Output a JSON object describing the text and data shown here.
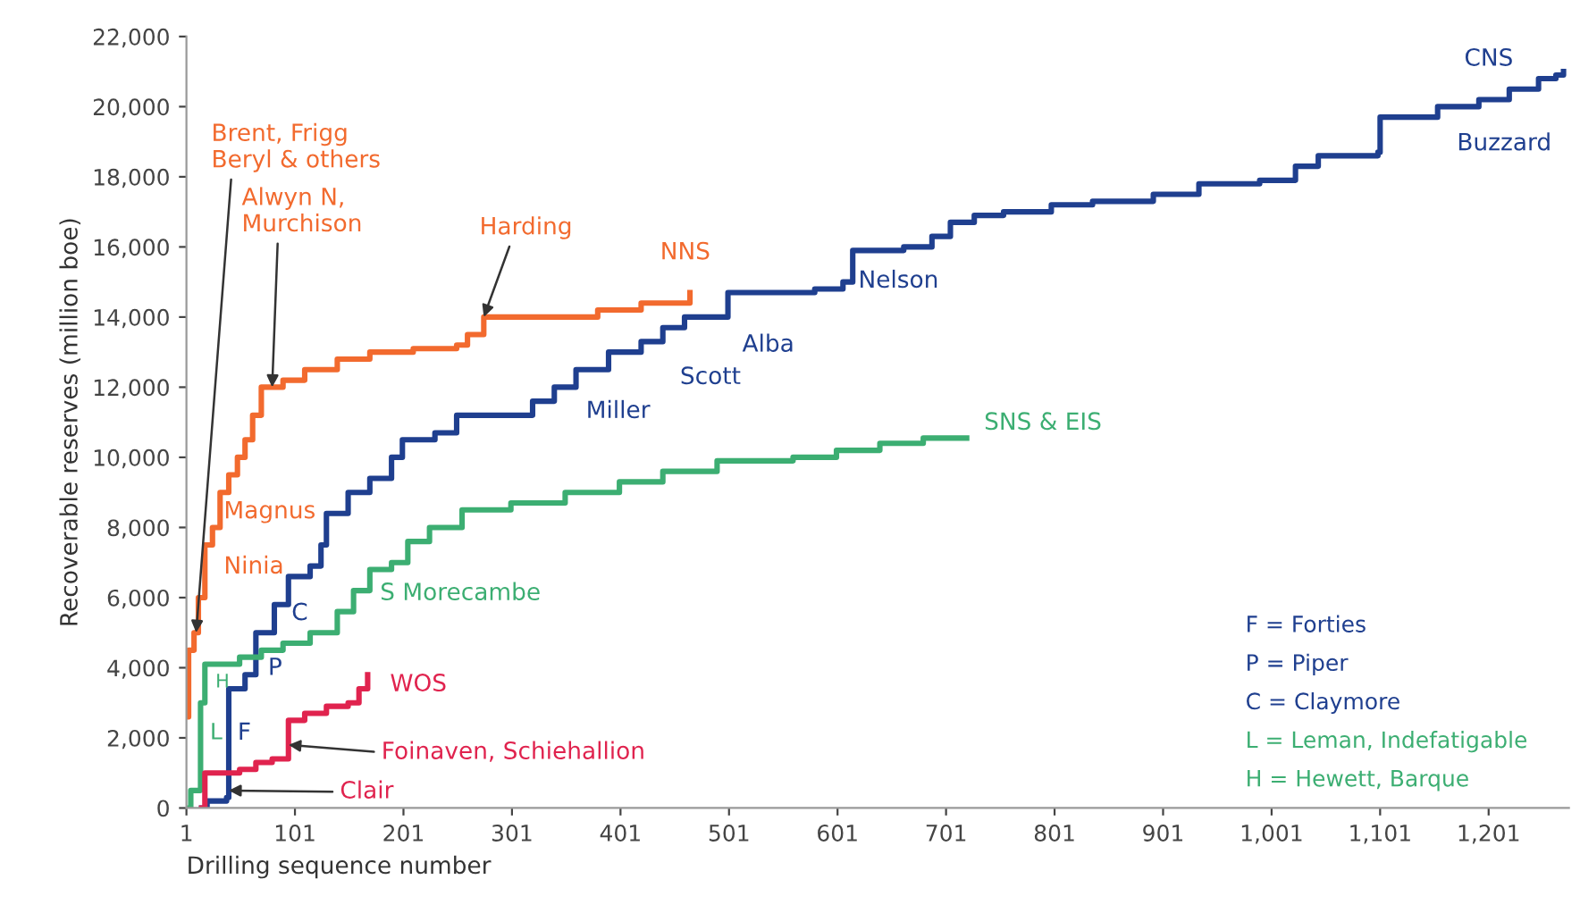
{
  "chart_data": {
    "type": "step",
    "xlabel": "Drilling sequence number",
    "ylabel": "Recoverable reserves (million boe)",
    "xlim": [
      1,
      1275
    ],
    "ylim": [
      0,
      22000
    ],
    "xticks": [
      1,
      101,
      201,
      301,
      401,
      501,
      601,
      701,
      801,
      901,
      {
        "value": 1001,
        "label": "1,001"
      },
      {
        "value": 1101,
        "label": "1,101"
      },
      {
        "value": 1201,
        "label": "1,201"
      }
    ],
    "yticks": [
      0,
      {
        "value": 2000,
        "label": "2,000"
      },
      {
        "value": 4000,
        "label": "4,000"
      },
      {
        "value": 6000,
        "label": "6,000"
      },
      {
        "value": 8000,
        "label": "8,000"
      },
      {
        "value": 10000,
        "label": "10,000"
      },
      {
        "value": 12000,
        "label": "12,000"
      },
      {
        "value": 14000,
        "label": "14,000"
      },
      {
        "value": 16000,
        "label": "16,000"
      },
      {
        "value": 18000,
        "label": "18,000"
      },
      {
        "value": 20000,
        "label": "20,000"
      },
      {
        "value": 22000,
        "label": "22,000"
      }
    ],
    "grid": false,
    "legend": false,
    "series": [
      {
        "name": "NNS",
        "color": "#f26a2e",
        "x": [
          1,
          3,
          8,
          12,
          18,
          25,
          32,
          40,
          48,
          55,
          62,
          70,
          90,
          110,
          140,
          170,
          210,
          250,
          260,
          275,
          330,
          380,
          420,
          465
        ],
        "values": [
          2600,
          4500,
          5000,
          6000,
          7500,
          8000,
          9000,
          9500,
          10000,
          10500,
          11200,
          12000,
          12200,
          12500,
          12800,
          13000,
          13100,
          13200,
          13500,
          14000,
          14000,
          14200,
          14400,
          14700
        ]
      },
      {
        "name": "CNS",
        "color": "#1f3f8f",
        "x": [
          15,
          20,
          38,
          40,
          55,
          65,
          82,
          95,
          115,
          125,
          130,
          150,
          170,
          190,
          200,
          230,
          250,
          320,
          340,
          360,
          390,
          420,
          440,
          460,
          500,
          580,
          606,
          615,
          662,
          688,
          705,
          727,
          754,
          798,
          836,
          892,
          934,
          990,
          1023,
          1044,
          1099,
          1101,
          1154,
          1192,
          1220,
          1247,
          1263,
          1270
        ],
        "values": [
          0,
          200,
          300,
          3400,
          3800,
          5000,
          5800,
          6600,
          6900,
          7500,
          8400,
          9000,
          9400,
          10000,
          10500,
          10700,
          11200,
          11600,
          12000,
          12500,
          13000,
          13300,
          13700,
          14000,
          14700,
          14800,
          15000,
          15900,
          16000,
          16300,
          16700,
          16900,
          17000,
          17200,
          17300,
          17500,
          17800,
          17900,
          18300,
          18600,
          18700,
          19700,
          20000,
          20200,
          20500,
          20800,
          20900,
          21000
        ]
      },
      {
        "name": "SNS & EIS",
        "color": "#3cae72",
        "x": [
          1,
          5,
          14,
          18,
          50,
          70,
          90,
          115,
          140,
          155,
          170,
          190,
          205,
          225,
          255,
          300,
          350,
          400,
          440,
          490,
          560,
          600,
          640,
          680,
          720
        ],
        "values": [
          0,
          500,
          3000,
          4100,
          4300,
          4500,
          4700,
          5000,
          5600,
          6200,
          6800,
          7000,
          7600,
          8000,
          8500,
          8700,
          9000,
          9300,
          9600,
          9900,
          10000,
          10200,
          10400,
          10550,
          10550
        ]
      },
      {
        "name": "WOS",
        "color": "#e0234e",
        "x": [
          15,
          18,
          50,
          65,
          80,
          95,
          110,
          130,
          150,
          160,
          168
        ],
        "values": [
          0,
          1000,
          1100,
          1300,
          1400,
          2500,
          2700,
          2900,
          3000,
          3400,
          3800
        ]
      }
    ],
    "annotations": [
      {
        "text": "Brent, Frigg\nBeryl & others",
        "x": 10,
        "y": 5000
      },
      {
        "text": "Alwyn N,\nMurchison",
        "x": 80,
        "y": 12000
      },
      {
        "text": "Harding",
        "x": 275,
        "y": 14000
      },
      {
        "text": "Foinaven, Schiehallion",
        "x": 95,
        "y": 1800
      },
      {
        "text": "Clair",
        "x": 40,
        "y": 500
      },
      "Magnus",
      "Ninia",
      "Nelson",
      "Buzzard",
      "Alba",
      "Scott",
      "Miller",
      "C",
      "P",
      "F",
      "H",
      "L",
      "S Morecambe",
      "F = Forties",
      "P = Piper",
      "C = Claymore",
      "L = Leman, Indefatigable",
      "H = Hewett, Barque"
    ]
  }
}
